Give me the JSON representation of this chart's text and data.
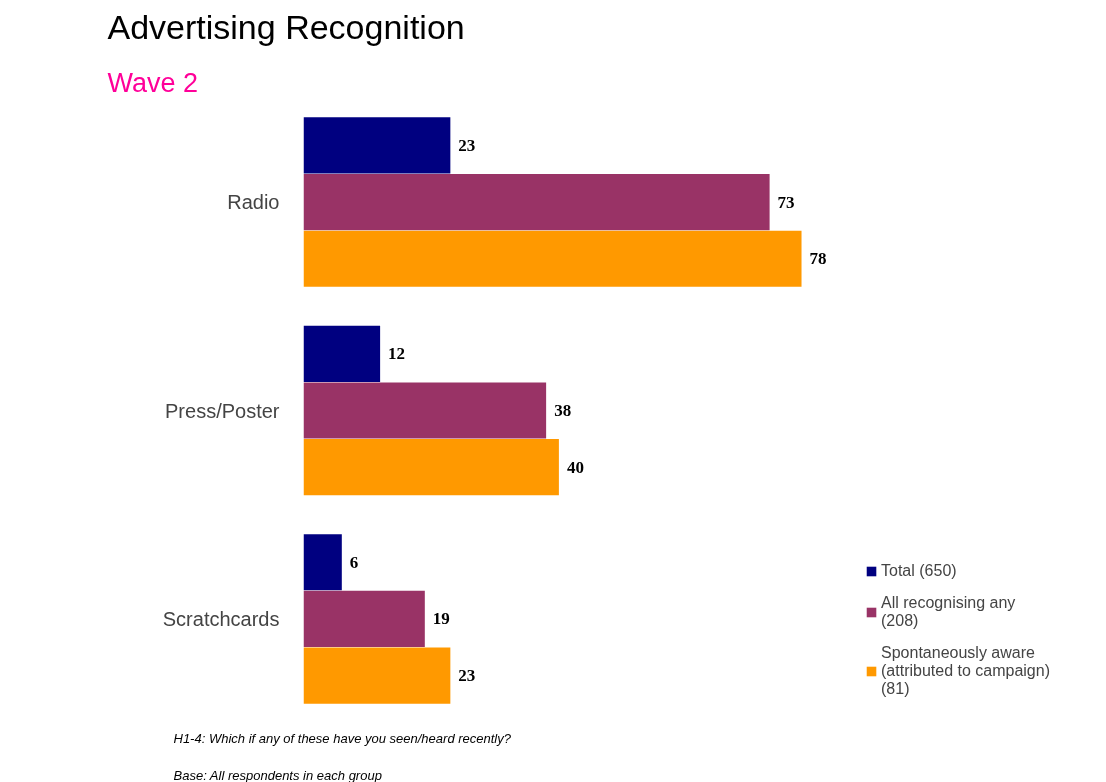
{
  "chart_data": {
    "type": "bar",
    "orientation": "horizontal",
    "title": "Advertising Recognition",
    "subtitle": "Wave 2",
    "categories": [
      "Radio",
      "Press/Poster",
      "Scratchcards"
    ],
    "series": [
      {
        "name": "Total (650)",
        "color": "#000080",
        "values": [
          23,
          12,
          6
        ]
      },
      {
        "name": "All recognising any (208)",
        "color": "#993366",
        "values": [
          73,
          38,
          19
        ]
      },
      {
        "name": "Spontaneously aware (attributed to campaign) (81)",
        "color": "#ff9900",
        "values": [
          78,
          40,
          23
        ]
      }
    ],
    "data_labels": true,
    "grid": false,
    "legend": "bottom right",
    "annotations": [
      "H1-4: Which if any of these have you seen/heard recently?",
      "Base:  All respondents in each group"
    ]
  }
}
